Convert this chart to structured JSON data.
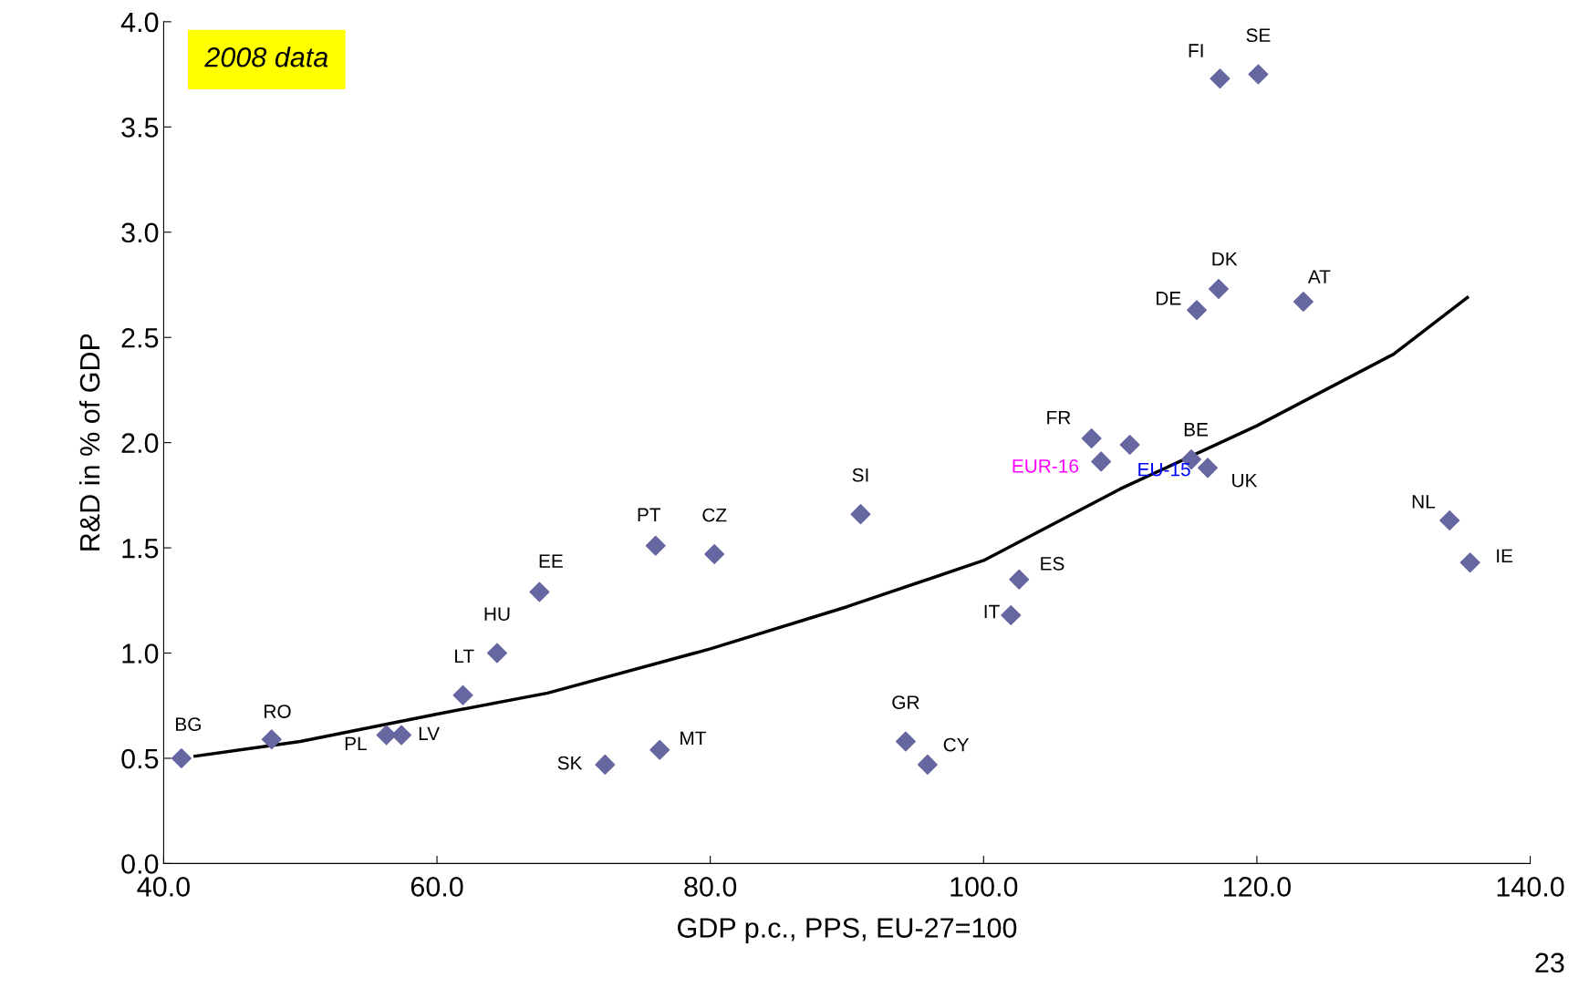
{
  "chart_data": {
    "type": "scatter",
    "xlabel": "GDP p.c., PPS, EU-27=100",
    "ylabel": "R&D in % of GDP",
    "xlim": [
      40,
      140
    ],
    "ylim": [
      0,
      4
    ],
    "xticks": [
      {
        "value": 40,
        "label": "40.0"
      },
      {
        "value": 60,
        "label": "60.0"
      },
      {
        "value": 80,
        "label": "80.0"
      },
      {
        "value": 100,
        "label": "100.0"
      },
      {
        "value": 120,
        "label": "120.0"
      },
      {
        "value": 140,
        "label": "140.0"
      }
    ],
    "yticks": [
      {
        "value": 0,
        "label": "0.0"
      },
      {
        "value": 0.5,
        "label": "0.5"
      },
      {
        "value": 1,
        "label": "1.0"
      },
      {
        "value": 1.5,
        "label": "1.5"
      },
      {
        "value": 2,
        "label": "2.0"
      },
      {
        "value": 2.5,
        "label": "2.5"
      },
      {
        "value": 3,
        "label": "3.0"
      },
      {
        "value": 3.5,
        "label": "3.5"
      },
      {
        "value": 4,
        "label": "4.0"
      }
    ],
    "grid": false,
    "legend": false,
    "series": [
      {
        "color": "#6666a0",
        "marker": "diamond",
        "x": [
          41.3,
          47.9,
          56.3,
          57.4,
          61.9,
          64.4,
          67.5,
          72.3,
          76.0,
          76.3,
          80.3,
          91.0,
          94.3,
          95.9,
          102.0,
          102.6,
          107.9,
          108.6,
          110.7,
          115.2,
          116.4,
          115.6,
          117.2,
          117.3,
          120.1,
          123.4,
          134.1,
          135.6
        ],
        "values": [
          0.5,
          0.59,
          0.61,
          0.61,
          0.8,
          1.0,
          1.29,
          0.47,
          1.51,
          0.54,
          1.47,
          1.66,
          0.58,
          0.47,
          1.18,
          1.35,
          2.02,
          1.91,
          1.99,
          1.92,
          1.88,
          2.63,
          2.73,
          3.73,
          3.75,
          2.67,
          1.63,
          1.43
        ],
        "value_labels": [
          "BG",
          "RO",
          "PL",
          "LV",
          "LT",
          "HU",
          "EE",
          "SK",
          "PT",
          "MT",
          "CZ",
          "SI",
          "GR",
          "CY",
          "IT",
          "ES",
          "FR",
          "EUR-16",
          "EU-15",
          "BE",
          "UK",
          "DE",
          "DK",
          "FI",
          "SE",
          "AT",
          "NL",
          "IE"
        ]
      },
      {
        "type": "line",
        "color": "#000000",
        "marker": "none",
        "line_style": "solid",
        "x": [
          42.3,
          50,
          60,
          68.1,
          80,
          90,
          100,
          110,
          120,
          130,
          135.4
        ],
        "values": [
          0.51,
          0.58,
          0.71,
          0.81,
          1.02,
          1.22,
          1.44,
          1.78,
          2.08,
          2.42,
          2.69
        ]
      }
    ],
    "annotations": [
      "2008 data",
      "23"
    ]
  }
}
